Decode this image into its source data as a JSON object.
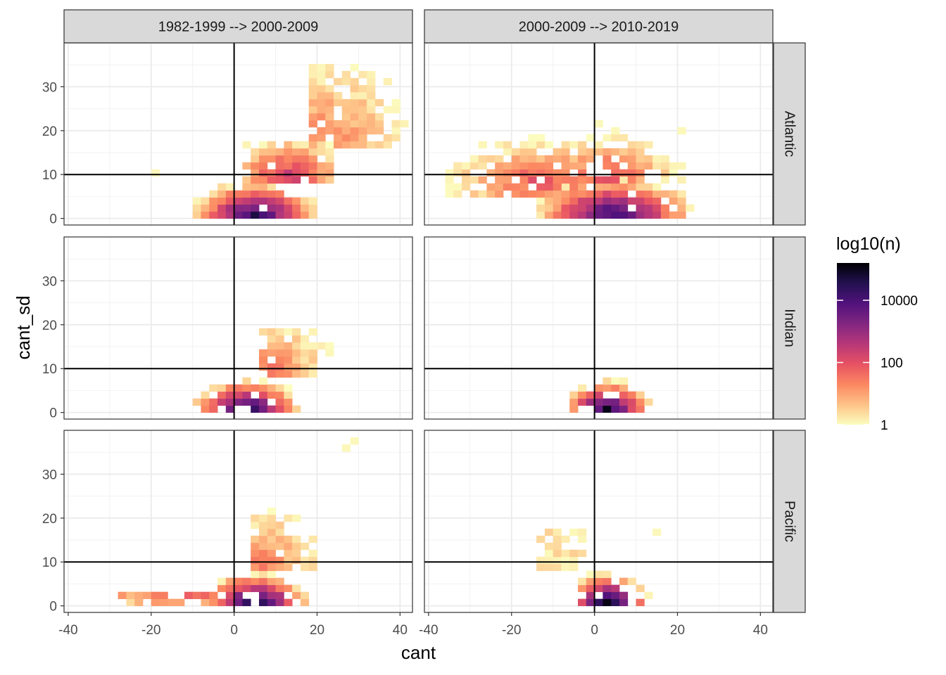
{
  "chart_data": {
    "type": "heatmap",
    "xlabel": "cant",
    "ylabel": "cant_sd",
    "xlim": [
      -41,
      43
    ],
    "ylim": [
      -1.5,
      40
    ],
    "x_ticks": [
      -40,
      -20,
      0,
      20,
      40
    ],
    "y_ticks": [
      0,
      10,
      20,
      30
    ],
    "reference_lines": {
      "vertical": 0,
      "horizontal": 10
    },
    "bin_width": [
      2,
      1.6
    ],
    "column_facets": [
      "1982-1999 --> 2000-2009",
      "2000-2009 --> 2010-2019"
    ],
    "row_facets": [
      "Atlantic",
      "Indian",
      "Pacific"
    ],
    "legend": {
      "title": "log10(n)",
      "scale": "log10",
      "breaks": [
        1,
        100,
        10000
      ],
      "break_labels": [
        "1",
        "100",
        "10000"
      ],
      "max_log10": 5.2,
      "colors": [
        "#FCFDBF",
        "#FEC287",
        "#FB8761",
        "#E75263",
        "#B63779",
        "#822681",
        "#51127C",
        "#221150",
        "#000004"
      ]
    },
    "panels": [
      {
        "row": "Atlantic",
        "column": "1982-1999 --> 2000-2009",
        "clusters": [
          {
            "x": [
              -10,
              18
            ],
            "y": [
              0,
              8
            ],
            "peak": [
              4,
              0
            ],
            "log10_n_peak": 4.6,
            "spread": [
              7,
              3.5
            ]
          },
          {
            "x": [
              2,
              22
            ],
            "y": [
              8,
              17
            ],
            "peak": [
              12,
              9
            ],
            "log10_n_peak": 2.4,
            "spread": [
              7,
              4
            ]
          },
          {
            "x": [
              18,
              40
            ],
            "y": [
              16,
              34
            ],
            "peak": [
              22,
              17
            ],
            "log10_n_peak": 1.4,
            "spread": [
              8,
              8
            ]
          }
        ],
        "isolated": [
          [
            -19,
            10.5
          ],
          [
            6,
            16.5
          ]
        ]
      },
      {
        "row": "Atlantic",
        "column": "2000-2009 --> 2010-2019",
        "clusters": [
          {
            "x": [
              -20,
              28
            ],
            "y": [
              0,
              10
            ],
            "peak": [
              4,
              0.5
            ],
            "log10_n_peak": 4.4,
            "spread": [
              9,
              3.5
            ]
          },
          {
            "x": [
              -40,
              -4
            ],
            "y": [
              6,
              20
            ],
            "peak": [
              -14,
              8
            ],
            "log10_n_peak": 2.0,
            "spread": [
              10,
              4
            ]
          },
          {
            "x": [
              -4,
              22
            ],
            "y": [
              8,
              20
            ],
            "peak": [
              2,
              9
            ],
            "log10_n_peak": 2.0,
            "spread": [
              8,
              4
            ]
          }
        ],
        "isolated": [
          [
            1,
            21.5
          ],
          [
            4,
            19.5
          ],
          [
            20,
            20.5
          ]
        ]
      },
      {
        "row": "Indian",
        "column": "1982-1999 --> 2000-2009",
        "clusters": [
          {
            "x": [
              -10,
              14
            ],
            "y": [
              0,
              7
            ],
            "peak": [
              2,
              0
            ],
            "log10_n_peak": 4.8,
            "spread": [
              6,
              3
            ]
          },
          {
            "x": [
              6,
              22
            ],
            "y": [
              8,
              19
            ],
            "peak": [
              8,
              8
            ],
            "log10_n_peak": 1.6,
            "spread": [
              6,
              6
            ]
          }
        ],
        "isolated": []
      },
      {
        "row": "Indian",
        "column": "2000-2009 --> 2010-2019",
        "clusters": [
          {
            "x": [
              -6,
              12
            ],
            "y": [
              0,
              8
            ],
            "peak": [
              2,
              0
            ],
            "log10_n_peak": 4.8,
            "spread": [
              5,
              3
            ]
          }
        ],
        "isolated": []
      },
      {
        "row": "Pacific",
        "column": "1982-1999 --> 2000-2009",
        "clusters": [
          {
            "x": [
              -4,
              18
            ],
            "y": [
              0,
              8
            ],
            "peak": [
              4,
              0
            ],
            "log10_n_peak": 5.0,
            "spread": [
              6,
              3
            ]
          },
          {
            "x": [
              -28,
              -6
            ],
            "y": [
              1.5,
              3
            ],
            "peak": [
              -12,
              1.5
            ],
            "log10_n_peak": 1.8,
            "spread": [
              14,
              1.5
            ]
          },
          {
            "x": [
              4,
              22
            ],
            "y": [
              8,
              22
            ],
            "peak": [
              6,
              8
            ],
            "log10_n_peak": 1.5,
            "spread": [
              6,
              6
            ]
          }
        ],
        "isolated": [
          [
            26,
            35.5
          ],
          [
            28,
            37
          ]
        ]
      },
      {
        "row": "Pacific",
        "column": "2000-2009 --> 2010-2019",
        "clusters": [
          {
            "x": [
              -4,
              12
            ],
            "y": [
              0,
              8
            ],
            "peak": [
              2,
              0
            ],
            "log10_n_peak": 5.1,
            "spread": [
              5,
              3
            ]
          },
          {
            "x": [
              -14,
              -4
            ],
            "y": [
              8,
              16
            ],
            "peak": [
              -10,
              12
            ],
            "log10_n_peak": 0.4,
            "spread": [
              4,
              4
            ]
          }
        ],
        "isolated": [
          [
            14,
            17.5
          ]
        ]
      }
    ]
  }
}
